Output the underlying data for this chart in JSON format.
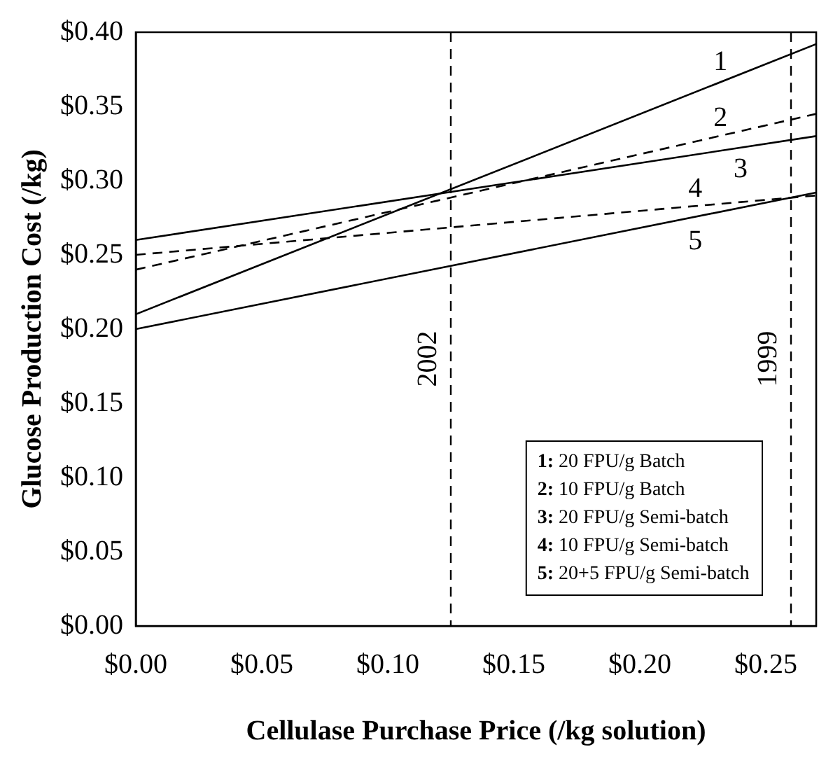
{
  "chart_data": {
    "type": "line",
    "xlabel": "Cellulase Purchase Price (/kg solution)",
    "ylabel": "Glucose Production Cost (/kg)",
    "xlim": [
      0,
      0.27
    ],
    "ylim": [
      0,
      0.4
    ],
    "xticks": [
      {
        "value": 0,
        "label": "$0.00"
      },
      {
        "value": 0.05,
        "label": "$0.05"
      },
      {
        "value": 0.1,
        "label": "$0.10"
      },
      {
        "value": 0.15,
        "label": "$0.15"
      },
      {
        "value": 0.2,
        "label": "$0.20"
      },
      {
        "value": 0.25,
        "label": "$0.25"
      }
    ],
    "yticks": [
      {
        "value": 0,
        "label": "$0.00"
      },
      {
        "value": 0.05,
        "label": "$0.05"
      },
      {
        "value": 0.1,
        "label": "$0.10"
      },
      {
        "value": 0.15,
        "label": "$0.15"
      },
      {
        "value": 0.2,
        "label": "$0.20"
      },
      {
        "value": 0.25,
        "label": "$0.25"
      },
      {
        "value": 0.3,
        "label": "$0.30"
      },
      {
        "value": 0.35,
        "label": "$0.35"
      },
      {
        "value": 0.4,
        "label": "$0.40"
      }
    ],
    "x": [
      0,
      0.27
    ],
    "series": [
      {
        "name": "1",
        "color": "#000000",
        "values": [
          0.21,
          0.392
        ],
        "line_style": "solid"
      },
      {
        "name": "2",
        "color": "#000000",
        "values": [
          0.24,
          0.345
        ],
        "line_style": "dashed"
      },
      {
        "name": "3",
        "color": "#000000",
        "values": [
          0.26,
          0.33
        ],
        "line_style": "solid"
      },
      {
        "name": "4",
        "color": "#000000",
        "values": [
          0.25,
          0.29
        ],
        "line_style": "dashed"
      },
      {
        "name": "5",
        "color": "#000000",
        "values": [
          0.2,
          0.292
        ],
        "line_style": "solid"
      }
    ],
    "ref_lines": [
      {
        "axis": "x",
        "value": 0.125,
        "line_style": "dashed"
      },
      {
        "axis": "x",
        "value": 0.26,
        "line_style": "dashed"
      }
    ],
    "annotations": [
      "1: 20 FPU/g Batch",
      "2: 10 FPU/g Batch",
      "3: 20 FPU/g Semi-batch",
      "4: 10 FPU/g Semi-batch",
      "5: 20+5 FPU/g Semi-batch",
      {
        "text": "2002",
        "x": 0.125,
        "y": 0.18
      },
      {
        "text": "1999",
        "x": 0.26,
        "y": 0.18
      }
    ],
    "marker": "none",
    "grid": false,
    "legend": false
  }
}
